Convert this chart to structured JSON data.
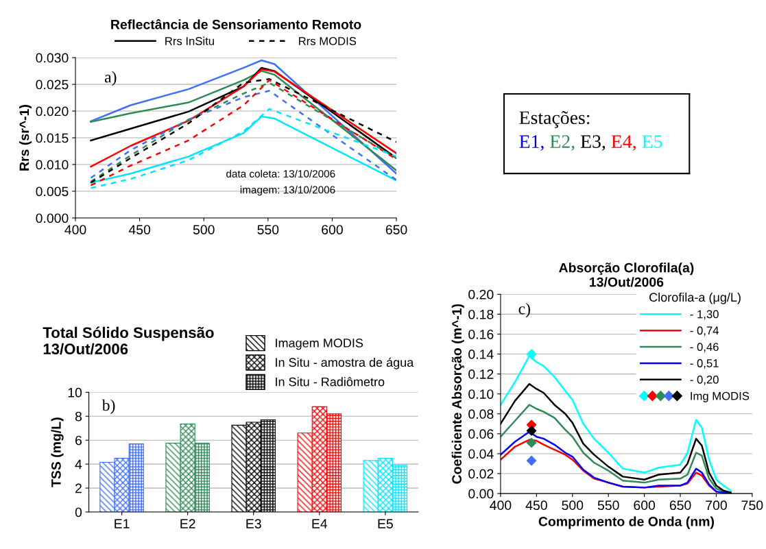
{
  "chart_data": [
    {
      "type": "line",
      "title": "Reflectância de Sensoriamento Remoto",
      "ylabel": "Rrs (sr^-1)",
      "xlim": [
        400,
        650
      ],
      "xticks": [
        400,
        450,
        500,
        550,
        600,
        650
      ],
      "ylim": [
        0,
        0.03
      ],
      "yticks": [
        {
          "value": 0,
          "label": "0.000"
        },
        {
          "value": 0.005,
          "label": "0.005"
        },
        {
          "value": 0.01,
          "label": "0.010"
        },
        {
          "value": 0.015,
          "label": "0.015"
        },
        {
          "value": 0.02,
          "label": "0.020"
        },
        {
          "value": 0.025,
          "label": "0.025"
        },
        {
          "value": 0.03,
          "label": "0.030"
        }
      ],
      "grid": "y",
      "legend": "top",
      "annotations": [
        "a)",
        "data coleta: 13/10/2006",
        "imagem: 13/10/2006"
      ],
      "series": [
        {
          "color": "#3f6fff",
          "line_style": "solid",
          "x": [
            412,
            443,
            488,
            531,
            545,
            555,
            650
          ],
          "values": [
            0.0181,
            0.0211,
            0.0241,
            0.0281,
            0.0295,
            0.0288,
            0.0083
          ]
        },
        {
          "color": "#2e8b57",
          "line_style": "solid",
          "x": [
            412,
            443,
            488,
            531,
            545,
            555,
            650
          ],
          "values": [
            0.018,
            0.0196,
            0.0216,
            0.0258,
            0.0275,
            0.0268,
            0.0089
          ]
        },
        {
          "name": "Rrs InSitu",
          "color": "#000000",
          "line_style": "solid",
          "x": [
            412,
            443,
            488,
            531,
            545,
            555,
            650
          ],
          "values": [
            0.0145,
            0.0167,
            0.0199,
            0.0246,
            0.0281,
            0.0275,
            0.0112
          ]
        },
        {
          "color": "#ff0000",
          "line_style": "solid",
          "x": [
            412,
            443,
            488,
            531,
            545,
            555,
            650
          ],
          "values": [
            0.0096,
            0.0135,
            0.0182,
            0.0246,
            0.0278,
            0.0274,
            0.0121
          ]
        },
        {
          "color": "#00e5ff",
          "line_style": "solid",
          "x": [
            412,
            443,
            488,
            531,
            545,
            555,
            650
          ],
          "values": [
            0.0066,
            0.0083,
            0.0115,
            0.0159,
            0.019,
            0.0186,
            0.007
          ]
        },
        {
          "color": "#3f6fff",
          "line_style": "dashed",
          "x": [
            412,
            443,
            488,
            531,
            551,
            650
          ],
          "values": [
            0.0075,
            0.0127,
            0.0184,
            0.0226,
            0.0238,
            0.0071
          ]
        },
        {
          "color": "#2e8b57",
          "line_style": "dashed",
          "x": [
            412,
            443,
            488,
            531,
            551,
            650
          ],
          "values": [
            0.0068,
            0.0117,
            0.0184,
            0.0233,
            0.0253,
            0.0112
          ]
        },
        {
          "name": "Rrs MODIS",
          "color": "#000000",
          "line_style": "dashed",
          "x": [
            412,
            443,
            488,
            531,
            551,
            650
          ],
          "values": [
            0.0066,
            0.0112,
            0.0177,
            0.0253,
            0.026,
            0.0142
          ]
        },
        {
          "color": "#ff0000",
          "line_style": "dashed",
          "x": [
            412,
            443,
            488,
            531,
            551,
            650
          ],
          "values": [
            0.0061,
            0.0098,
            0.0145,
            0.0211,
            0.0258,
            0.011
          ]
        },
        {
          "color": "#00e5ff",
          "line_style": "dashed",
          "x": [
            412,
            443,
            488,
            531,
            551,
            650
          ],
          "values": [
            0.0056,
            0.0073,
            0.0108,
            0.0162,
            0.0204,
            0.0115
          ]
        }
      ]
    },
    {
      "type": "other",
      "title": "Estações:",
      "annotations": [
        "E1, E2, E3, E4, E5"
      ],
      "colors": [
        "#0000ff",
        "#2e8b57",
        "#000000",
        "#ff0000",
        "#00ffff"
      ]
    },
    {
      "type": "bar",
      "title": "Total Sólido Suspensão\n13/Out/2006",
      "ylabel": "TSS (mg/L)",
      "categories": [
        "E1",
        "E2",
        "E3",
        "E4",
        "E5"
      ],
      "ylim": [
        0,
        10
      ],
      "yticks": [
        0,
        2,
        4,
        6,
        8,
        10
      ],
      "grid": "y",
      "legend": "top right",
      "annotations": [
        "b)"
      ],
      "series": [
        {
          "name": "Imagem MODIS",
          "color": "#000000",
          "colors": [
            "#3f6fff",
            "#2e8b57",
            "#000000",
            "#ff0000",
            "#00e5ff"
          ],
          "values": [
            4.15,
            5.75,
            7.25,
            6.6,
            4.3
          ]
        },
        {
          "name": "In Situ - amostra de água",
          "color": "#000000",
          "colors": [
            "#3f6fff",
            "#2e8b57",
            "#000000",
            "#ff0000",
            "#00e5ff"
          ],
          "values": [
            4.5,
            7.35,
            7.5,
            8.8,
            4.5
          ]
        },
        {
          "name": "In Situ - Radiômetro",
          "color": "#000000",
          "colors": [
            "#3f6fff",
            "#2e8b57",
            "#000000",
            "#ff0000",
            "#00e5ff"
          ],
          "values": [
            5.7,
            5.75,
            7.7,
            8.2,
            3.9
          ]
        }
      ]
    },
    {
      "type": "line",
      "title": "Absorção Clorofila(a)\n13/Out/2006",
      "xlabel": "Comprimento de Onda (nm)",
      "ylabel": "Coeficiente Absorção (m^-1)",
      "legend_title": "Clorofila-a (μg/L)",
      "xlim": [
        400,
        750
      ],
      "xticks": [
        400,
        450,
        500,
        550,
        600,
        650,
        700,
        750
      ],
      "ylim": [
        0,
        0.2
      ],
      "yticks": [
        {
          "value": 0,
          "label": "0.00"
        },
        {
          "value": 0.02,
          "label": "0.02"
        },
        {
          "value": 0.04,
          "label": "0.04"
        },
        {
          "value": 0.06,
          "label": "0.06"
        },
        {
          "value": 0.08,
          "label": "0.08"
        },
        {
          "value": 0.1,
          "label": "0.10"
        },
        {
          "value": 0.12,
          "label": "0.12"
        },
        {
          "value": 0.14,
          "label": "0.14"
        },
        {
          "value": 0.16,
          "label": "0.16"
        },
        {
          "value": 0.18,
          "label": "0.18"
        },
        {
          "value": 0.2,
          "label": "0.20"
        }
      ],
      "grid": "y",
      "legend": "top right",
      "annotations": [
        "c)"
      ],
      "x": [
        400,
        420,
        440,
        450,
        460,
        475,
        490,
        500,
        515,
        530,
        550,
        570,
        600,
        620,
        650,
        660,
        672,
        680,
        690,
        700,
        710,
        720
      ],
      "series": [
        {
          "name": "- 1,30",
          "color": "#00ffff",
          "values": [
            0.089,
            0.112,
            0.138,
            0.132,
            0.128,
            0.117,
            0.103,
            0.094,
            0.07,
            0.055,
            0.041,
            0.025,
            0.021,
            0.026,
            0.029,
            0.041,
            0.074,
            0.066,
            0.034,
            0.014,
            0.008,
            0.003
          ]
        },
        {
          "name": "- 0,74",
          "color": "#ff0000",
          "values": [
            0.034,
            0.047,
            0.054,
            0.053,
            0.049,
            0.044,
            0.039,
            0.034,
            0.023,
            0.015,
            0.011,
            0.007,
            0.006,
            0.007,
            0.008,
            0.01,
            0.021,
            0.018,
            0.008,
            0.002,
            null,
            null
          ]
        },
        {
          "name": "- 0,46",
          "color": "#2e8b57",
          "values": [
            0.057,
            0.073,
            0.089,
            0.085,
            0.082,
            0.076,
            0.064,
            0.057,
            0.041,
            0.031,
            0.023,
            0.013,
            0.011,
            0.014,
            0.015,
            0.019,
            0.041,
            0.038,
            0.015,
            0.005,
            0.002,
            0.001
          ]
        },
        {
          "name": "- 0,51",
          "color": "#0000ff",
          "values": [
            0.039,
            0.052,
            0.062,
            0.057,
            0.055,
            0.049,
            0.041,
            0.037,
            0.024,
            0.016,
            0.011,
            0.007,
            0.006,
            0.008,
            0.008,
            0.011,
            0.025,
            0.021,
            0.009,
            0.002,
            0.001,
            0.0
          ]
        },
        {
          "name": "- 0,20",
          "color": "#000000",
          "values": [
            0.07,
            0.093,
            0.11,
            0.105,
            0.101,
            0.089,
            0.08,
            0.071,
            0.05,
            0.039,
            0.027,
            0.017,
            0.014,
            0.019,
            0.021,
            0.03,
            0.055,
            0.048,
            0.021,
            0.008,
            0.003,
            0.001
          ]
        },
        {
          "type": "scatter",
          "name": "Img MODIS",
          "marker": "diamond",
          "x": [
            443,
            443,
            443,
            443,
            443
          ],
          "colors": [
            "#00ffff",
            "#ff0000",
            "#2e8b57",
            "#3f6fff",
            "#000000"
          ],
          "values": [
            0.14,
            0.069,
            0.051,
            0.033,
            0.063
          ]
        }
      ]
    }
  ]
}
